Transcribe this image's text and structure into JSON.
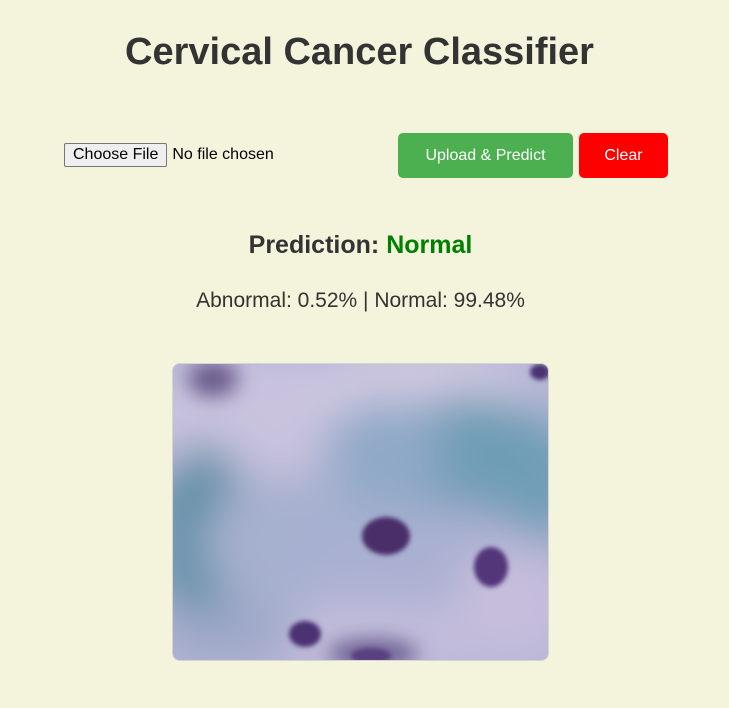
{
  "header": {
    "title": "Cervical Cancer Classifier"
  },
  "upload_form": {
    "choose_file_label": "Choose File",
    "file_status": "No file chosen",
    "upload_button_label": "Upload & Predict",
    "clear_button_label": "Clear"
  },
  "result": {
    "prediction_label": "Prediction:",
    "prediction_value": "Normal",
    "probabilities_text": "Abnormal: 0.52% | Normal: 99.48%"
  },
  "colors": {
    "background": "#f4f4dc",
    "upload_button": "#4caf50",
    "clear_button": "#ff0000",
    "prediction_normal": "#008000"
  },
  "preview_image": {
    "icon": "cell-micrograph-image"
  }
}
